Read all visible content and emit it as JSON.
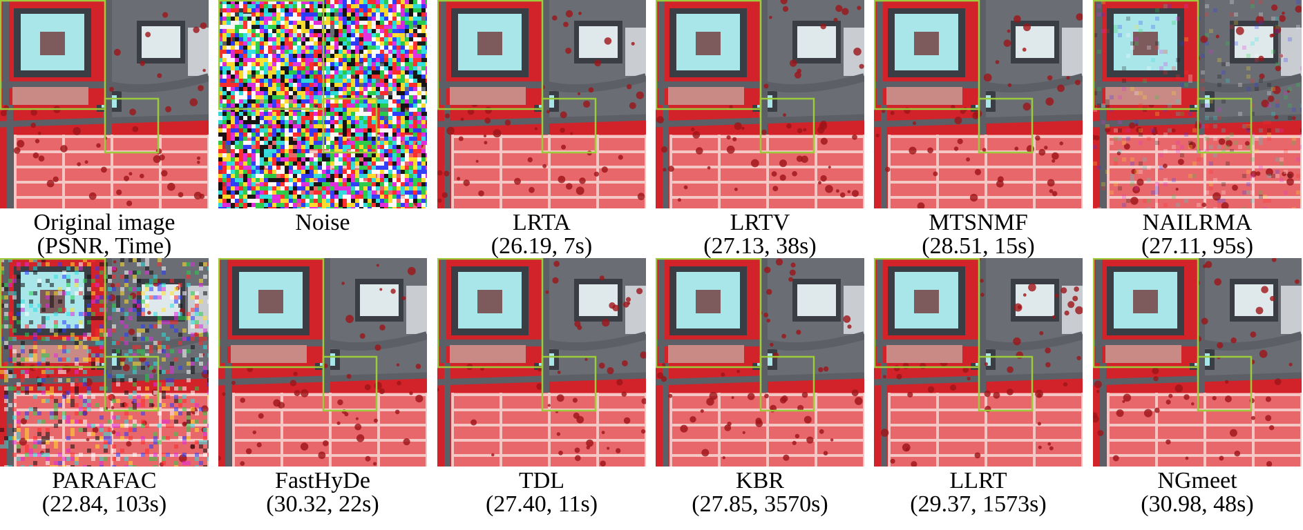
{
  "panels": [
    {
      "label": "Original image",
      "metrics": "(PSNR, Time)",
      "psnr": null,
      "time_s": null
    },
    {
      "label": "Noise",
      "metrics": "",
      "psnr": null,
      "time_s": null
    },
    {
      "label": "LRTA",
      "metrics": "(26.19, 7s)",
      "psnr": 26.19,
      "time_s": 7
    },
    {
      "label": "LRTV",
      "metrics": "(27.13, 38s)",
      "psnr": 27.13,
      "time_s": 38
    },
    {
      "label": "MTSNMF",
      "metrics": "(28.51, 15s)",
      "psnr": 28.51,
      "time_s": 15
    },
    {
      "label": "NAILRMA",
      "metrics": "(27.11, 95s)",
      "psnr": 27.11,
      "time_s": 95
    },
    {
      "label": "PARAFAC",
      "metrics": "(22.84, 103s)",
      "psnr": 22.84,
      "time_s": 103
    },
    {
      "label": "FastHyDe",
      "metrics": "(30.32, 22s)",
      "psnr": 30.32,
      "time_s": 22
    },
    {
      "label": "TDL",
      "metrics": "(27.40, 11s)",
      "psnr": 27.4,
      "time_s": 11
    },
    {
      "label": "KBR",
      "metrics": "(27.85, 3570s)",
      "psnr": 27.85,
      "time_s": 3570
    },
    {
      "label": "LLRT",
      "metrics": "(29.37, 1573s)",
      "psnr": 29.37,
      "time_s": 1573
    },
    {
      "label": "NGmeet",
      "metrics": "(30.98, 48s)",
      "psnr": 30.98,
      "time_s": 48
    }
  ],
  "colors": {
    "vegetation_red": "#d2232a",
    "asphalt_gray": "#5c5f66",
    "roof_cyan": "#a8e6ea",
    "field_pink": "#e8676a",
    "zoom_box_green": "#9ccc3c"
  }
}
